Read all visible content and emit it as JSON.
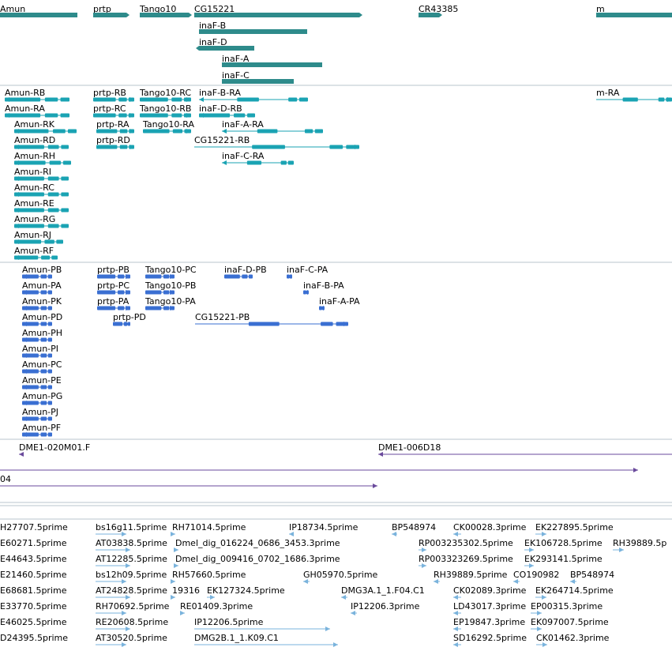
{
  "colors": {
    "gene": "#2e8b8b",
    "transcript": "#1aa3b3",
    "protein": "#3a6fd2",
    "clone": "#6a4a9c",
    "est": "#7ab3dc",
    "separator": "#b8c4cc"
  },
  "tracks": {
    "genes": {
      "items": [
        {
          "label": "Amun",
          "start": 0,
          "end": 98,
          "strand": "-",
          "row": 0
        },
        {
          "label": "prtp",
          "start": 118,
          "end": 160,
          "strand": "+",
          "row": 0
        },
        {
          "label": "Tango10",
          "start": 177,
          "end": 239,
          "strand": "+",
          "row": 0
        },
        {
          "label": "CG15221",
          "start": 246,
          "end": 455,
          "strand": "+",
          "row": 0
        },
        {
          "label": "CR43385",
          "start": 530,
          "end": 556,
          "strand": "+",
          "row": 0
        },
        {
          "label": "m",
          "start": 755,
          "end": 851,
          "strand": "+",
          "row": 0
        },
        {
          "label": "inaF-B",
          "start": 252,
          "end": 389,
          "strand": "",
          "row": 1
        },
        {
          "label": "inaF-D",
          "start": 252,
          "end": 322,
          "strand": "-",
          "row": 2
        },
        {
          "label": "inaF-A",
          "start": 281,
          "end": 408,
          "strand": "",
          "row": 3
        },
        {
          "label": "inaF-C",
          "start": 281,
          "end": 372,
          "strand": "",
          "row": 4
        }
      ]
    },
    "transcripts": {
      "items": [
        {
          "label": "Amun-RB",
          "start": 6,
          "end": 88,
          "strand": "-",
          "row": 0
        },
        {
          "label": "prtp-RB",
          "start": 118,
          "end": 170,
          "strand": "+",
          "row": 0
        },
        {
          "label": "Tango10-RC",
          "start": 177,
          "end": 242,
          "strand": "+",
          "row": 0
        },
        {
          "label": "inaF-B-RA",
          "start": 252,
          "end": 390,
          "strand": "-",
          "row": 0
        },
        {
          "label": "m-RA",
          "start": 755,
          "end": 851,
          "strand": "+",
          "row": 0
        },
        {
          "label": "Amun-RA",
          "start": 6,
          "end": 88,
          "strand": "-",
          "row": 1
        },
        {
          "label": "prtp-RC",
          "start": 118,
          "end": 170,
          "strand": "+",
          "row": 1
        },
        {
          "label": "Tango10-RB",
          "start": 177,
          "end": 242,
          "strand": "+",
          "row": 1
        },
        {
          "label": "inaF-D-RB",
          "start": 252,
          "end": 323,
          "strand": "-",
          "row": 1
        },
        {
          "label": "Amun-RK",
          "start": 18,
          "end": 97,
          "strand": "-",
          "row": 2
        },
        {
          "label": "prtp-RA",
          "start": 122,
          "end": 170,
          "strand": "+",
          "row": 2
        },
        {
          "label": "Tango10-RA",
          "start": 181,
          "end": 242,
          "strand": "+",
          "row": 2
        },
        {
          "label": "inaF-A-RA",
          "start": 281,
          "end": 409,
          "strand": "-",
          "row": 2
        },
        {
          "label": "Amun-RD",
          "start": 18,
          "end": 87,
          "strand": "-",
          "row": 3
        },
        {
          "label": "prtp-RD",
          "start": 122,
          "end": 170,
          "strand": "+",
          "row": 3
        },
        {
          "label": "CG15221-RB",
          "start": 246,
          "end": 455,
          "strand": "+",
          "row": 3
        },
        {
          "label": "Amun-RH",
          "start": 18,
          "end": 90,
          "strand": "-",
          "row": 4
        },
        {
          "label": "inaF-C-RA",
          "start": 281,
          "end": 372,
          "strand": "-",
          "row": 4
        },
        {
          "label": "Amun-RI",
          "start": 18,
          "end": 87,
          "strand": "-",
          "row": 5
        },
        {
          "label": "Amun-RC",
          "start": 18,
          "end": 87,
          "strand": "-",
          "row": 6
        },
        {
          "label": "Amun-RE",
          "start": 18,
          "end": 87,
          "strand": "-",
          "row": 7
        },
        {
          "label": "Amun-RG",
          "start": 18,
          "end": 87,
          "strand": "-",
          "row": 8
        },
        {
          "label": "Amun-RJ",
          "start": 18,
          "end": 80,
          "strand": "-",
          "row": 9
        },
        {
          "label": "Amun-RF",
          "start": 18,
          "end": 73,
          "strand": "-",
          "row": 10
        }
      ]
    },
    "proteins": {
      "items": [
        {
          "label": "Amun-PB",
          "start": 28,
          "end": 66,
          "strand": "-",
          "row": 0
        },
        {
          "label": "prtp-PB",
          "start": 123,
          "end": 165,
          "strand": "+",
          "row": 0
        },
        {
          "label": "Tango10-PC",
          "start": 184,
          "end": 221,
          "strand": "+",
          "row": 0
        },
        {
          "label": "inaF-D-PB",
          "start": 284,
          "end": 320,
          "strand": "",
          "row": 0
        },
        {
          "label": "inaF-C-PA",
          "start": 363,
          "end": 370,
          "strand": "-",
          "row": 0
        },
        {
          "label": "Amun-PA",
          "start": 28,
          "end": 66,
          "strand": "-",
          "row": 1
        },
        {
          "label": "prtp-PC",
          "start": 123,
          "end": 165,
          "strand": "+",
          "row": 1
        },
        {
          "label": "Tango10-PB",
          "start": 184,
          "end": 221,
          "strand": "+",
          "row": 1
        },
        {
          "label": "inaF-B-PA",
          "start": 384,
          "end": 391,
          "strand": "-",
          "row": 1
        },
        {
          "label": "Amun-PK",
          "start": 28,
          "end": 66,
          "strand": "-",
          "row": 2
        },
        {
          "label": "prtp-PA",
          "start": 123,
          "end": 165,
          "strand": "+",
          "row": 2
        },
        {
          "label": "Tango10-PA",
          "start": 184,
          "end": 221,
          "strand": "+",
          "row": 2
        },
        {
          "label": "inaF-A-PA",
          "start": 404,
          "end": 411,
          "strand": "-",
          "row": 2
        },
        {
          "label": "Amun-PD",
          "start": 28,
          "end": 66,
          "strand": "-",
          "row": 3
        },
        {
          "label": "prtp-PD",
          "start": 143,
          "end": 165,
          "strand": "+",
          "row": 3
        },
        {
          "label": "CG15221-PB",
          "start": 247,
          "end": 441,
          "strand": "+",
          "row": 3
        },
        {
          "label": "Amun-PH",
          "start": 28,
          "end": 66,
          "strand": "-",
          "row": 4
        },
        {
          "label": "Amun-PI",
          "start": 28,
          "end": 66,
          "strand": "-",
          "row": 5
        },
        {
          "label": "Amun-PC",
          "start": 28,
          "end": 66,
          "strand": "-",
          "row": 6
        },
        {
          "label": "Amun-PE",
          "start": 28,
          "end": 66,
          "strand": "-",
          "row": 7
        },
        {
          "label": "Amun-PG",
          "start": 28,
          "end": 66,
          "strand": "-",
          "row": 8
        },
        {
          "label": "Amun-PJ",
          "start": 28,
          "end": 66,
          "strand": "-",
          "row": 9
        },
        {
          "label": "Amun-PF",
          "start": 28,
          "end": 66,
          "strand": "-",
          "row": 10
        }
      ]
    },
    "clones": {
      "items": [
        {
          "label": "DME1-020M01.F",
          "start": 24,
          "end": 28,
          "strand": "-",
          "row": 0
        },
        {
          "label": "DME1-006D18",
          "start": 479,
          "end": 851,
          "strand": "-",
          "row": 0
        },
        {
          "label": "",
          "start": 0,
          "end": 808,
          "strand": "+",
          "row": 1
        },
        {
          "label": "04",
          "start": 0,
          "end": 478,
          "strand": "+",
          "row": 2
        }
      ]
    },
    "ests": {
      "items": [
        {
          "label": "H27707.5prime",
          "start": 0,
          "end": 0,
          "strand": "",
          "row": 0
        },
        {
          "label": "bs16g11.5prime",
          "start": 121,
          "end": 160,
          "strand": "+",
          "row": 0
        },
        {
          "label": "RH71014.5prime",
          "start": 218,
          "end": 222,
          "strand": "+",
          "row": 0
        },
        {
          "label": "IP18734.5prime",
          "start": 366,
          "end": 372,
          "strand": "-",
          "row": 0
        },
        {
          "label": "BP548974",
          "start": 496,
          "end": 503,
          "strand": "-",
          "row": 0
        },
        {
          "label": "CK00028.3prime",
          "start": 574,
          "end": 584,
          "strand": "-",
          "row": 0
        },
        {
          "label": "EK227895.5prime",
          "start": 678,
          "end": 692,
          "strand": "+",
          "row": 0
        },
        {
          "label": "E60271.5prime",
          "start": 0,
          "end": 0,
          "strand": "",
          "row": 1
        },
        {
          "label": "AT03838.5prime",
          "start": 121,
          "end": 165,
          "strand": "+",
          "row": 1
        },
        {
          "label": "Dmel_dig_016224_0686_3453.3prime",
          "start": 222,
          "end": 226,
          "strand": "+",
          "row": 1
        },
        {
          "label": "RP003235302.5prime",
          "start": 530,
          "end": 540,
          "strand": "+",
          "row": 1
        },
        {
          "label": "EK106728.5prime",
          "start": 664,
          "end": 676,
          "strand": "+",
          "row": 1
        },
        {
          "label": "RH39889.5p",
          "start": 776,
          "end": 790,
          "strand": "+",
          "row": 1
        },
        {
          "label": "E44643.5prime",
          "start": 0,
          "end": 0,
          "strand": "",
          "row": 2
        },
        {
          "label": "AT12285.5prime",
          "start": 121,
          "end": 165,
          "strand": "+",
          "row": 2
        },
        {
          "label": "Dmel_dig_009416_0702_1686.3prime",
          "start": 222,
          "end": 226,
          "strand": "+",
          "row": 2
        },
        {
          "label": "RP003323269.5prime",
          "start": 530,
          "end": 540,
          "strand": "+",
          "row": 2
        },
        {
          "label": "EK293141.5prime",
          "start": 664,
          "end": 676,
          "strand": "+",
          "row": 2
        },
        {
          "label": "E21460.5prime",
          "start": 0,
          "end": 0,
          "strand": "",
          "row": 3
        },
        {
          "label": "bs12h09.5prime",
          "start": 121,
          "end": 160,
          "strand": "+",
          "row": 3
        },
        {
          "label": "RH57660.5prime",
          "start": 218,
          "end": 222,
          "strand": "+",
          "row": 3
        },
        {
          "label": "GH05970.5prime",
          "start": 384,
          "end": 392,
          "strand": "-",
          "row": 3
        },
        {
          "label": "RH39889.5prime",
          "start": 549,
          "end": 557,
          "strand": "-",
          "row": 3
        },
        {
          "label": "CO190982",
          "start": 650,
          "end": 658,
          "strand": "-",
          "row": 3
        },
        {
          "label": "BP548974",
          "start": 722,
          "end": 730,
          "strand": "-",
          "row": 3
        },
        {
          "label": "E68681.5prime",
          "start": 0,
          "end": 0,
          "strand": "",
          "row": 4
        },
        {
          "label": "AT24828.5prime",
          "start": 121,
          "end": 165,
          "strand": "+",
          "row": 4
        },
        {
          "label": "19316",
          "start": 218,
          "end": 222,
          "strand": "+",
          "row": 4
        },
        {
          "label": "EK127324.5prime",
          "start": 262,
          "end": 272,
          "strand": "+",
          "row": 4
        },
        {
          "label": "DMG3A.1_1.F04.C1",
          "start": 432,
          "end": 440,
          "strand": "-",
          "row": 4
        },
        {
          "label": "CK02089.3prime",
          "start": 574,
          "end": 584,
          "strand": "-",
          "row": 4
        },
        {
          "label": "EK264714.5prime",
          "start": 678,
          "end": 692,
          "strand": "+",
          "row": 4
        },
        {
          "label": "E33770.5prime",
          "start": 0,
          "end": 0,
          "strand": "",
          "row": 5
        },
        {
          "label": "RH70692.5prime",
          "start": 121,
          "end": 160,
          "strand": "+",
          "row": 5
        },
        {
          "label": "RE01409.3prime",
          "start": 228,
          "end": 234,
          "strand": "+",
          "row": 5
        },
        {
          "label": "IP12206.3prime",
          "start": 444,
          "end": 452,
          "strand": "-",
          "row": 5
        },
        {
          "label": "LD43017.3prime",
          "start": 574,
          "end": 584,
          "strand": "-",
          "row": 5
        },
        {
          "label": "EP00315.3prime",
          "start": 672,
          "end": 686,
          "strand": "+",
          "row": 5
        },
        {
          "label": "E46025.5prime",
          "start": 0,
          "end": 0,
          "strand": "",
          "row": 6
        },
        {
          "label": "RE20608.5prime",
          "start": 121,
          "end": 165,
          "strand": "+",
          "row": 6
        },
        {
          "label": "IP12206.5prime",
          "start": 246,
          "end": 418,
          "strand": "+",
          "row": 6
        },
        {
          "label": "EP19847.3prime",
          "start": 574,
          "end": 584,
          "strand": "-",
          "row": 6
        },
        {
          "label": "EK097007.5prime",
          "start": 672,
          "end": 686,
          "strand": "+",
          "row": 6
        },
        {
          "label": "D24395.5prime",
          "start": 0,
          "end": 0,
          "strand": "",
          "row": 7
        },
        {
          "label": "AT30520.5prime",
          "start": 121,
          "end": 160,
          "strand": "+",
          "row": 7
        },
        {
          "label": "DMG2B.1_1.K09.C1",
          "start": 246,
          "end": 428,
          "strand": "+",
          "row": 7
        },
        {
          "label": "SD16292.5prime",
          "start": 574,
          "end": 584,
          "strand": "-",
          "row": 7
        },
        {
          "label": "CK01462.3prime",
          "start": 679,
          "end": 693,
          "strand": "+",
          "row": 7
        }
      ]
    }
  }
}
